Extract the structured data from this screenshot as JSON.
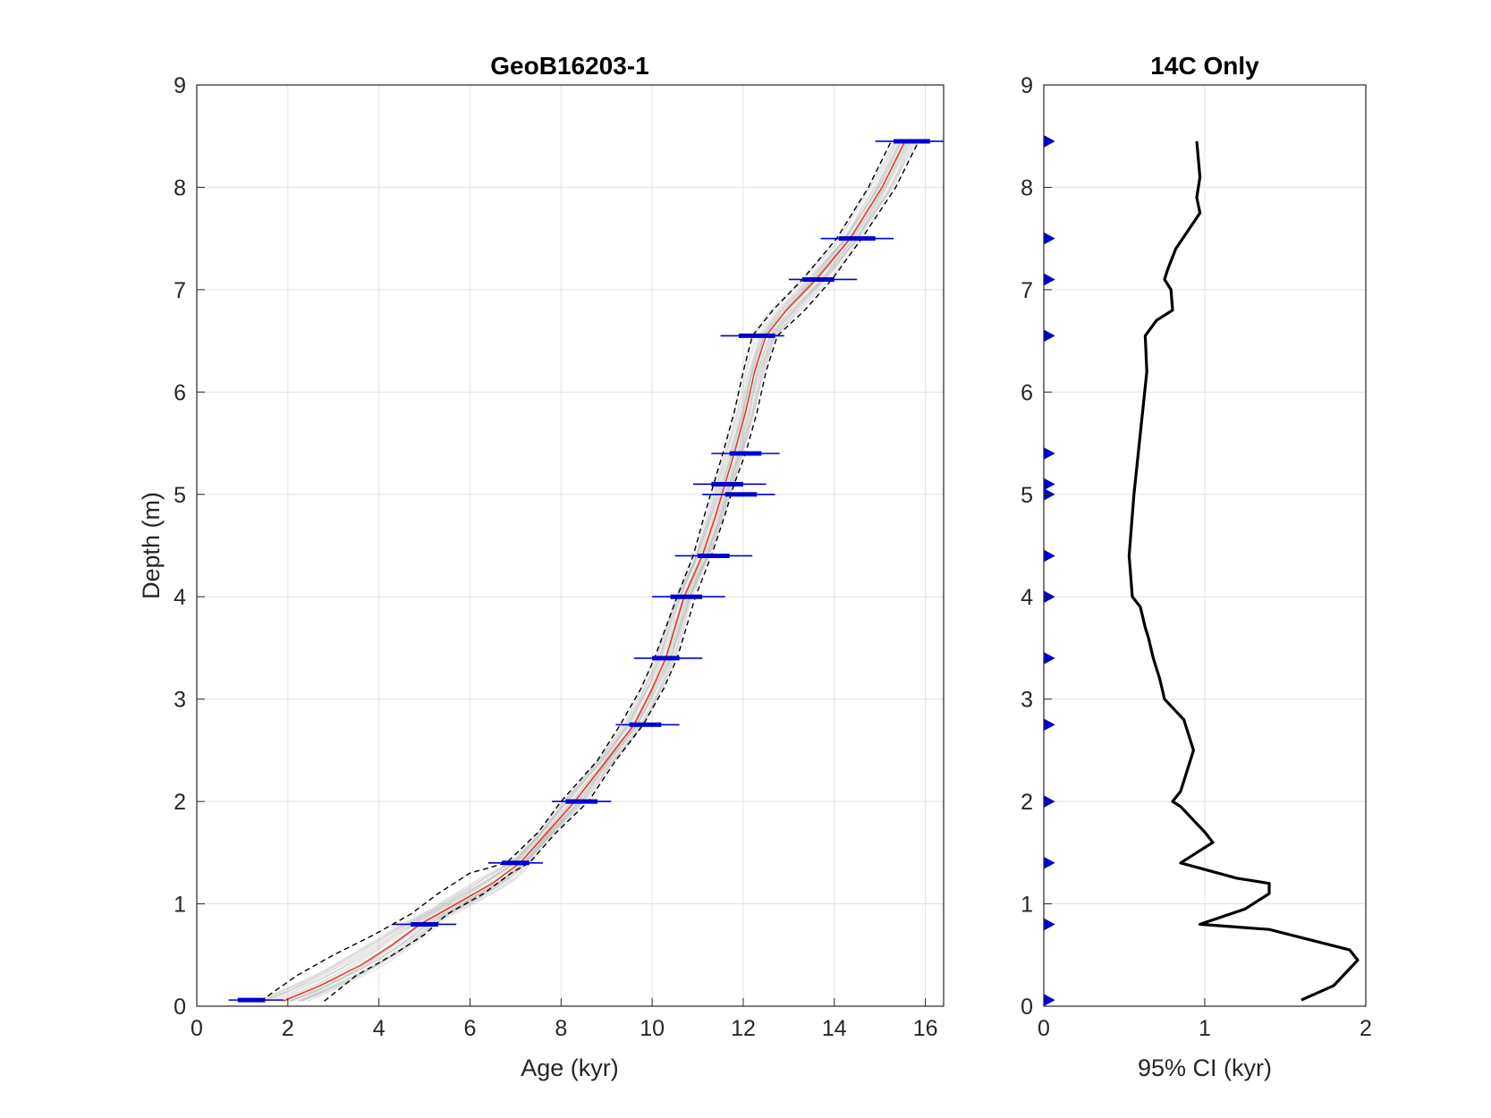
{
  "chart_data": [
    {
      "type": "line",
      "title": "GeoB16203-1",
      "xlabel": "Age (kyr)",
      "ylabel": "Depth (m)",
      "xlim": [
        0,
        16.4
      ],
      "ylim": [
        0,
        9
      ],
      "xticks": [
        0,
        2,
        4,
        6,
        8,
        10,
        12,
        14,
        16
      ],
      "yticks": [
        0,
        1,
        2,
        3,
        4,
        5,
        6,
        7,
        8,
        9
      ],
      "grid": true,
      "colors": {
        "median": "#e8311a",
        "bounds": "#000000",
        "ensemble": "#9a9a9a",
        "dates": "#0000cc"
      },
      "median": {
        "depth": [
          0.05,
          0.2,
          0.4,
          0.6,
          0.8,
          1.0,
          1.2,
          1.4,
          1.7,
          2.0,
          2.4,
          2.75,
          3.1,
          3.4,
          3.7,
          4.0,
          4.4,
          4.8,
          5.1,
          5.4,
          5.8,
          6.2,
          6.55,
          6.8,
          7.1,
          7.5,
          8.0,
          8.45
        ],
        "age": [
          1.9,
          2.7,
          3.6,
          4.3,
          4.9,
          5.7,
          6.5,
          7.1,
          7.7,
          8.3,
          9.0,
          9.6,
          10.0,
          10.3,
          10.5,
          10.7,
          11.1,
          11.4,
          11.6,
          11.8,
          12.05,
          12.25,
          12.5,
          12.95,
          13.6,
          14.35,
          15.05,
          15.55
        ]
      },
      "upper_bound": {
        "depth": [
          0.05,
          0.3,
          0.5,
          0.7,
          0.9,
          1.1,
          1.3,
          1.4,
          1.7,
          2.0,
          2.4,
          2.75,
          3.1,
          3.4,
          3.7,
          4.0,
          4.4,
          4.8,
          5.1,
          5.4,
          5.8,
          6.2,
          6.55,
          6.8,
          7.1,
          7.5,
          8.0,
          8.45
        ],
        "age": [
          1.4,
          2.2,
          3.0,
          3.9,
          4.7,
          5.3,
          6.0,
          6.8,
          7.5,
          8.0,
          8.8,
          9.3,
          9.75,
          10.05,
          10.3,
          10.55,
          10.9,
          11.15,
          11.35,
          11.55,
          11.8,
          12.0,
          12.2,
          12.65,
          13.3,
          14.05,
          14.75,
          15.25
        ]
      },
      "lower_bound": {
        "depth": [
          0.05,
          0.3,
          0.5,
          0.7,
          0.9,
          1.1,
          1.3,
          1.4,
          1.7,
          2.0,
          2.4,
          2.75,
          3.1,
          3.4,
          3.7,
          4.0,
          4.4,
          4.8,
          5.1,
          5.4,
          5.8,
          6.2,
          6.55,
          6.8,
          7.1,
          7.5,
          8.0,
          8.45
        ],
        "age": [
          2.8,
          3.5,
          4.3,
          5.0,
          5.5,
          6.3,
          6.9,
          7.3,
          7.9,
          8.6,
          9.2,
          9.8,
          10.25,
          10.55,
          10.75,
          10.95,
          11.3,
          11.6,
          11.8,
          12.05,
          12.3,
          12.5,
          12.75,
          13.35,
          13.95,
          14.6,
          15.35,
          15.85
        ]
      },
      "dates": [
        {
          "depth": 0.06,
          "age": 1.2,
          "sigma1": [
            0.9,
            1.5
          ],
          "sigma2": [
            0.7,
            1.9
          ]
        },
        {
          "depth": 0.8,
          "age": 5.0,
          "sigma1": [
            4.7,
            5.3
          ],
          "sigma2": [
            4.3,
            5.7
          ]
        },
        {
          "depth": 1.4,
          "age": 7.0,
          "sigma1": [
            6.7,
            7.3
          ],
          "sigma2": [
            6.4,
            7.6
          ]
        },
        {
          "depth": 2.0,
          "age": 8.4,
          "sigma1": [
            8.1,
            8.8
          ],
          "sigma2": [
            7.8,
            9.1
          ]
        },
        {
          "depth": 2.75,
          "age": 9.8,
          "sigma1": [
            9.5,
            10.2
          ],
          "sigma2": [
            9.2,
            10.6
          ]
        },
        {
          "depth": 3.4,
          "age": 10.3,
          "sigma1": [
            10.0,
            10.6
          ],
          "sigma2": [
            9.6,
            11.1
          ]
        },
        {
          "depth": 4.0,
          "age": 10.7,
          "sigma1": [
            10.4,
            11.1
          ],
          "sigma2": [
            10.0,
            11.6
          ]
        },
        {
          "depth": 4.4,
          "age": 11.3,
          "sigma1": [
            11.0,
            11.7
          ],
          "sigma2": [
            10.5,
            12.2
          ]
        },
        {
          "depth": 5.0,
          "age": 11.9,
          "sigma1": [
            11.6,
            12.3
          ],
          "sigma2": [
            11.1,
            12.7
          ]
        },
        {
          "depth": 5.1,
          "age": 11.6,
          "sigma1": [
            11.3,
            12.0
          ],
          "sigma2": [
            10.9,
            12.5
          ]
        },
        {
          "depth": 5.4,
          "age": 12.1,
          "sigma1": [
            11.7,
            12.4
          ],
          "sigma2": [
            11.3,
            12.8
          ]
        },
        {
          "depth": 6.55,
          "age": 12.3,
          "sigma1": [
            11.9,
            12.7
          ],
          "sigma2": [
            11.5,
            12.9
          ]
        },
        {
          "depth": 7.1,
          "age": 13.6,
          "sigma1": [
            13.3,
            14.0
          ],
          "sigma2": [
            13.0,
            14.5
          ]
        },
        {
          "depth": 7.5,
          "age": 14.5,
          "sigma1": [
            14.1,
            14.9
          ],
          "sigma2": [
            13.7,
            15.3
          ]
        },
        {
          "depth": 8.45,
          "age": 15.7,
          "sigma1": [
            15.3,
            16.1
          ],
          "sigma2": [
            14.9,
            16.4
          ]
        }
      ]
    },
    {
      "type": "line",
      "title": "14C Only",
      "xlabel": "95% CI (kyr)",
      "ylabel": "",
      "xlim": [
        0,
        2
      ],
      "ylim": [
        0,
        9
      ],
      "xticks": [
        0,
        1,
        2
      ],
      "yticks": [
        0,
        1,
        2,
        3,
        4,
        5,
        6,
        7,
        8,
        9
      ],
      "grid": true,
      "colors": {
        "line": "#000000",
        "markers": "#0000dd"
      },
      "ci": {
        "depth": [
          0.06,
          0.2,
          0.45,
          0.55,
          0.75,
          0.8,
          0.95,
          1.1,
          1.2,
          1.25,
          1.4,
          1.5,
          1.6,
          1.7,
          1.95,
          2.0,
          2.1,
          2.5,
          2.8,
          3.0,
          3.2,
          3.4,
          3.6,
          3.7,
          3.9,
          4.0,
          4.4,
          5.0,
          5.6,
          6.2,
          6.55,
          6.7,
          6.8,
          7.0,
          7.1,
          7.2,
          7.4,
          7.75,
          7.9,
          8.1,
          8.45
        ],
        "width": [
          1.6,
          1.8,
          1.95,
          1.9,
          1.4,
          0.97,
          1.25,
          1.4,
          1.4,
          1.2,
          0.85,
          0.95,
          1.05,
          1.0,
          0.85,
          0.8,
          0.85,
          0.93,
          0.87,
          0.75,
          0.72,
          0.68,
          0.65,
          0.63,
          0.6,
          0.55,
          0.53,
          0.56,
          0.6,
          0.64,
          0.63,
          0.7,
          0.8,
          0.79,
          0.75,
          0.77,
          0.82,
          0.97,
          0.95,
          0.97,
          0.95
        ]
      },
      "marker_depths": [
        0.06,
        0.8,
        1.4,
        2.0,
        2.75,
        3.4,
        4.0,
        4.4,
        5.0,
        5.1,
        5.4,
        6.55,
        7.1,
        7.5,
        8.45
      ]
    }
  ]
}
